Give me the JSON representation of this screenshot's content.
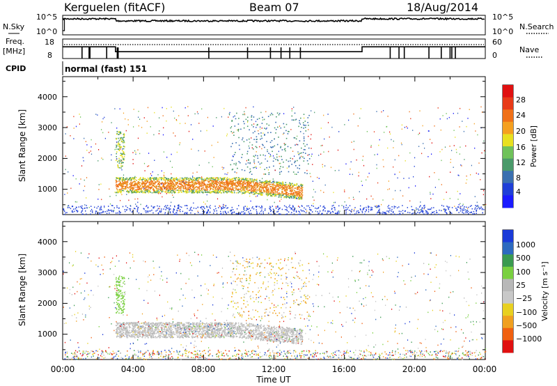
{
  "header": {
    "station": "Kerguelen (fitACF)",
    "beam": "Beam 07",
    "date": "18/Aug/2014"
  },
  "colors": {
    "power_scale": [
      "#1a1aff",
      "#1f3fd8",
      "#3a6fb0",
      "#4a9a6a",
      "#6fc25a",
      "#e8e020",
      "#f5a020",
      "#f07018",
      "#e83a18",
      "#e01010"
    ],
    "velocity_scale": [
      "#1a3ad8",
      "#2d6abf",
      "#3a9a50",
      "#7ad040",
      "#b8b8b8",
      "#c8c8c8",
      "#e8d020",
      "#f0a020",
      "#f06010",
      "#e01010"
    ]
  },
  "chart_data": [
    {
      "name": "nsky-nsearch",
      "type": "line",
      "left_label": "N.Sky",
      "right_label": "N.Search",
      "left_ticks": [
        "10^5",
        "10^0"
      ],
      "right_ticks": [
        "10^5",
        "10^0"
      ],
      "xlim": [
        0,
        24
      ]
    },
    {
      "name": "freq-nave",
      "type": "line",
      "left_label_lines": [
        "Freq.",
        "[MHz]"
      ],
      "right_label": "Nave",
      "left_ticks": [
        "18",
        "8"
      ],
      "right_ticks": [
        "60",
        "0"
      ],
      "freq_steps": [
        [
          0,
          14
        ],
        [
          3,
          14
        ],
        [
          3,
          11.5
        ],
        [
          17,
          11.5
        ],
        [
          17,
          14
        ],
        [
          24,
          14
        ]
      ],
      "xlim": [
        0,
        24
      ]
    },
    {
      "name": "cpid",
      "type": "table",
      "label": "CPID",
      "program": "normal (fast) 151"
    },
    {
      "name": "power",
      "type": "heatmap",
      "ylabel": "Slant Range [km]",
      "yticks": [
        "1000",
        "2000",
        "3000",
        "4000"
      ],
      "ylim": [
        180,
        4650
      ],
      "xlim": [
        0,
        24
      ],
      "colorbar_label": "Power [dB]",
      "colorbar_ticks": [
        "4",
        "8",
        "12",
        "16",
        "20",
        "24",
        "28"
      ],
      "colorbar_range": [
        0,
        30
      ]
    },
    {
      "name": "velocity",
      "type": "heatmap",
      "ylabel": "Slant Range [km]",
      "yticks": [
        "1000",
        "2000",
        "3000",
        "4000"
      ],
      "ylim": [
        180,
        4650
      ],
      "xlim": [
        0,
        24
      ],
      "colorbar_label": "Velocity [m s⁻¹]",
      "colorbar_ticks": [
        "1000",
        "500",
        "100",
        "25",
        "−25",
        "−100",
        "−500",
        "−1000"
      ],
      "x_tick_labels": [
        "00:00",
        "04:00",
        "08:00",
        "12:00",
        "16:00",
        "20:00",
        "00:00"
      ],
      "x_tick_hours": [
        0,
        4,
        8,
        12,
        16,
        20,
        24
      ],
      "xlabel": "Time UT"
    }
  ]
}
